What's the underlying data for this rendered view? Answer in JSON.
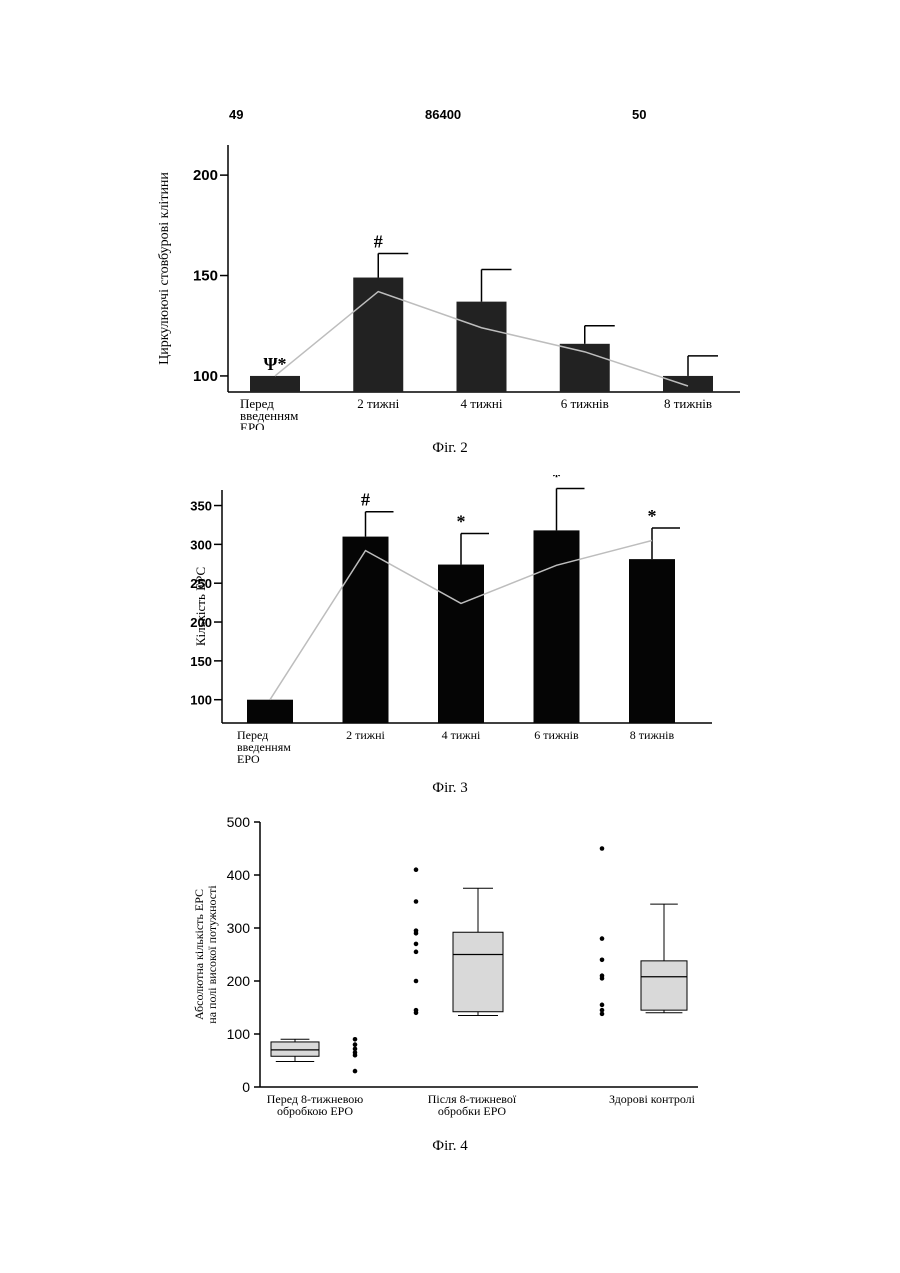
{
  "header": {
    "left": "49",
    "middle": "86400",
    "right": "50"
  },
  "figures": [
    {
      "caption": "Фіг. 2",
      "chart_data": {
        "type": "bar",
        "ylabel": "Циркулюючі стовбурові клітини",
        "categories": [
          [
            "Перед",
            "введенням",
            "EPO"
          ],
          [
            "2 тижні"
          ],
          [
            "4 тижні"
          ],
          [
            "6 тижнів"
          ],
          [
            "8 тижнів"
          ]
        ],
        "values": [
          100,
          149,
          137,
          116,
          100
        ],
        "errors": [
          0,
          12,
          16,
          9,
          10
        ],
        "line_values": [
          100,
          142,
          124,
          112,
          95
        ],
        "annotations": [
          "Ψ*",
          "#",
          "",
          "",
          ""
        ],
        "yticks": [
          100,
          150,
          200
        ],
        "ylim": [
          92,
          215
        ]
      }
    },
    {
      "caption": "Фіг. 3",
      "chart_data": {
        "type": "bar",
        "ylabel": "Кількість ЕРС",
        "categories": [
          [
            "Перед",
            "введенням",
            "EPO"
          ],
          [
            "2 тижні"
          ],
          [
            "4 тижні"
          ],
          [
            "6 тижнів"
          ],
          [
            "8 тижнів"
          ]
        ],
        "values": [
          100,
          310,
          274,
          318,
          281
        ],
        "errors": [
          0,
          32,
          40,
          54,
          40
        ],
        "line_values": [
          100,
          292,
          224,
          273,
          305
        ],
        "annotations": [
          "",
          "#",
          "*",
          "*",
          "*"
        ],
        "yticks": [
          100,
          150,
          200,
          250,
          300,
          350
        ],
        "ylim": [
          70,
          370
        ]
      }
    },
    {
      "caption": "Фіг. 4",
      "chart_data": {
        "type": "box",
        "ylabel": [
          "Абсолютна кількість ЕРС",
          "на полі високої потужності"
        ],
        "categories": [
          [
            "Перед 8-тижневою",
            "обробкою EPO"
          ],
          [
            "Після 8-тижневої",
            "обробки EPO"
          ],
          [
            "Здорові контролі"
          ]
        ],
        "yticks": [
          0,
          100,
          200,
          300,
          400,
          500
        ],
        "ylim": [
          0,
          500
        ],
        "groups": [
          {
            "points": [
              90,
              80,
              72,
              65,
              60,
              30
            ],
            "box": {
              "whisker_low": 48,
              "q1": 58,
              "median": 70,
              "q3": 85,
              "whisker_high": 90
            }
          },
          {
            "points": [
              410,
              350,
              295,
              290,
              270,
              255,
              200,
              145,
              140
            ],
            "box": {
              "whisker_low": 135,
              "q1": 142,
              "median": 250,
              "q3": 292,
              "whisker_high": 375
            }
          },
          {
            "points": [
              450,
              280,
              240,
              210,
              205,
              155,
              145,
              138
            ],
            "box": {
              "whisker_low": 140,
              "q1": 145,
              "median": 208,
              "q3": 238,
              "whisker_high": 345
            }
          }
        ]
      }
    }
  ]
}
